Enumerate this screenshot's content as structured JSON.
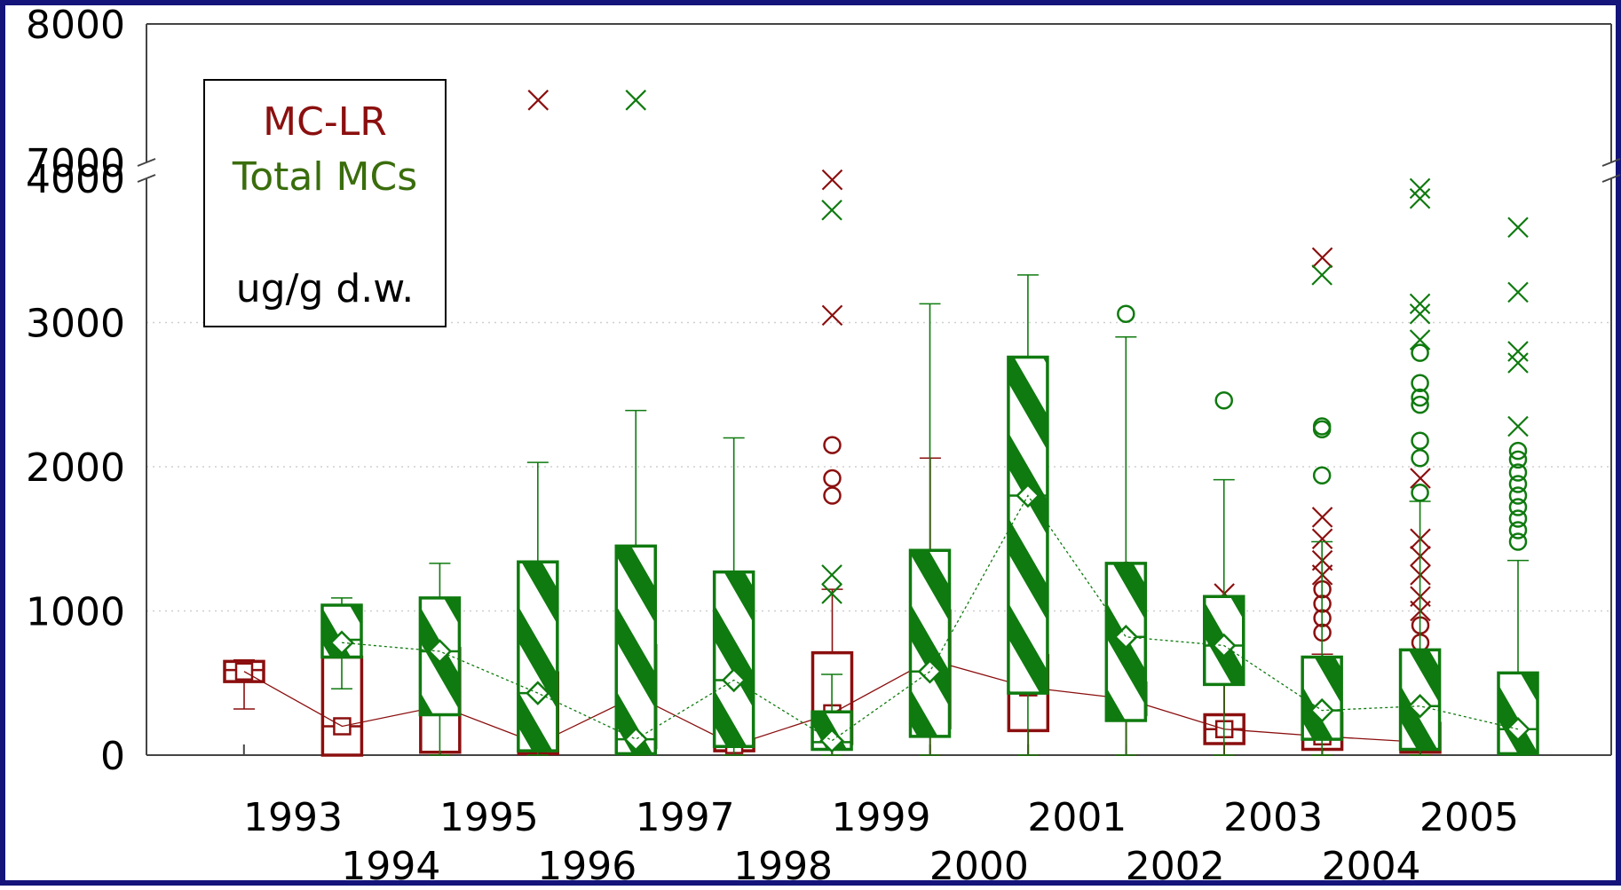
{
  "colors": {
    "frame": "#14147a",
    "mclr": "#8b0f0f",
    "total": "#0f7a0f",
    "grid": "#cfcfcf"
  },
  "legend": {
    "line1": "MC-LR",
    "line2": "Total MCs",
    "unit": "ug/g d.w."
  },
  "chart_data": {
    "type": "box",
    "x": [
      1993,
      1994,
      1995,
      1996,
      1997,
      1998,
      1999,
      2000,
      2001,
      2002,
      2003,
      2004,
      2005
    ],
    "xtick_labels": [
      "1993",
      "1994",
      "1995",
      "1996",
      "1997",
      "1998",
      "1999",
      "2000",
      "2001",
      "2002",
      "2003",
      "2004",
      "2005"
    ],
    "ytick_labels": [
      "0",
      "1000",
      "2000",
      "3000",
      "4000",
      "7000",
      "8000"
    ],
    "y_axis": {
      "lower_segment": [
        0,
        4000
      ],
      "upper_segment": [
        7000,
        8000
      ],
      "break": true
    },
    "grid": "horizontal dotted",
    "series": [
      {
        "name": "MC-LR",
        "color": "#8b0f0f",
        "boxes": [
          {
            "year": 1993,
            "whisker_low": 320,
            "q1": 510,
            "median": 590,
            "q3": 650,
            "whisker_high": 660,
            "mean": 580,
            "outliers_circle": [],
            "outliers_x": []
          },
          {
            "year": 1994,
            "whisker_low": 0,
            "q1": 0,
            "median": 200,
            "q3": 680,
            "whisker_high": 940,
            "mean": 200,
            "outliers_circle": [],
            "outliers_x": []
          },
          {
            "year": 1995,
            "whisker_low": 0,
            "q1": 20,
            "median": 330,
            "q3": 740,
            "whisker_high": 940,
            "mean": 340,
            "outliers_circle": [],
            "outliers_x": []
          },
          {
            "year": 1996,
            "whisker_low": 0,
            "q1": 10,
            "median": 80,
            "q3": 570,
            "whisker_high": 850,
            "mean": 80,
            "outliers_circle": [],
            "outliers_x": [
              7450
            ]
          },
          {
            "year": 1997,
            "whisker_low": 0,
            "q1": 50,
            "median": 400,
            "q3": 760,
            "whisker_high": 830,
            "mean": 410,
            "outliers_circle": [],
            "outliers_x": []
          },
          {
            "year": 1998,
            "whisker_low": 0,
            "q1": 30,
            "median": 60,
            "q3": 110,
            "whisker_high": 150,
            "mean": 70,
            "outliers_circle": [],
            "outliers_x": [
              380,
              480,
              750
            ]
          },
          {
            "year": 1999,
            "whisker_low": 0,
            "q1": 80,
            "median": 280,
            "q3": 710,
            "whisker_high": 1150,
            "mean": 290,
            "outliers_circle": [
              1800,
              1920,
              2150
            ],
            "outliers_x": [
              3050,
              3990
            ]
          },
          {
            "year": 2000,
            "whisker_low": 0,
            "q1": 190,
            "median": 650,
            "q3": 1000,
            "whisker_high": 2060,
            "mean": 660,
            "outliers_circle": [],
            "outliers_x": []
          },
          {
            "year": 2001,
            "whisker_low": 0,
            "q1": 170,
            "median": 460,
            "q3": 690,
            "whisker_high": 1150,
            "mean": 470,
            "outliers_circle": [],
            "outliers_x": []
          },
          {
            "year": 2002,
            "whisker_low": 0,
            "q1": 280,
            "median": 390,
            "q3": 500,
            "whisker_high": 800,
            "mean": 390,
            "outliers_circle": [
              1280
            ],
            "outliers_x": []
          },
          {
            "year": 2003,
            "whisker_low": 0,
            "q1": 80,
            "median": 180,
            "q3": 280,
            "whisker_high": 600,
            "mean": 180,
            "outliers_circle": [
              780
            ],
            "outliers_x": [
              1120
            ]
          },
          {
            "year": 2004,
            "whisker_low": 0,
            "q1": 40,
            "median": 130,
            "q3": 290,
            "whisker_high": 700,
            "mean": 130,
            "outliers_circle": [
              850,
              950,
              1050,
              1150
            ],
            "outliers_x": [
              1250,
              1350,
              1500,
              1650,
              3450
            ]
          },
          {
            "year": 2005,
            "whisker_low": 0,
            "q1": 20,
            "median": 90,
            "q3": 220,
            "whisker_high": 590,
            "mean": 90,
            "outliers_circle": [
              650,
              780,
              900
            ],
            "outliers_x": [
              1000,
              1100,
              1250,
              1380,
              1500,
              1920
            ]
          }
        ]
      },
      {
        "name": "Total MCs",
        "color": "#0f7a0f",
        "boxes": [
          {
            "year": 1993,
            "whisker_low": 460,
            "q1": 680,
            "median": 800,
            "q3": 1040,
            "whisker_high": 1090,
            "mean": 780,
            "outliers_circle": [],
            "outliers_x": []
          },
          {
            "year": 1994,
            "whisker_low": 0,
            "q1": 280,
            "median": 720,
            "q3": 1090,
            "whisker_high": 1330,
            "mean": 720,
            "outliers_circle": [],
            "outliers_x": []
          },
          {
            "year": 1995,
            "whisker_low": 0,
            "q1": 30,
            "median": 430,
            "q3": 1340,
            "whisker_high": 2030,
            "mean": 430,
            "outliers_circle": [],
            "outliers_x": []
          },
          {
            "year": 1996,
            "whisker_low": 0,
            "q1": 10,
            "median": 110,
            "q3": 1450,
            "whisker_high": 2390,
            "mean": 110,
            "outliers_circle": [],
            "outliers_x": [
              7450
            ]
          },
          {
            "year": 1997,
            "whisker_low": 0,
            "q1": 60,
            "median": 520,
            "q3": 1270,
            "whisker_high": 2200,
            "mean": 520,
            "outliers_circle": [],
            "outliers_x": []
          },
          {
            "year": 1998,
            "whisker_low": 0,
            "q1": 40,
            "median": 90,
            "q3": 300,
            "whisker_high": 560,
            "mean": 100,
            "outliers_circle": [],
            "outliers_x": [
              1120,
              1250,
              3780
            ]
          },
          {
            "year": 1999,
            "whisker_low": 0,
            "q1": 130,
            "median": 580,
            "q3": 1420,
            "whisker_high": 3130,
            "mean": 580,
            "outliers_circle": [],
            "outliers_x": []
          },
          {
            "year": 2000,
            "whisker_low": 0,
            "q1": 430,
            "median": 1800,
            "q3": 2760,
            "whisker_high": 3330,
            "mean": 1800,
            "outliers_circle": [],
            "outliers_x": []
          },
          {
            "year": 2001,
            "whisker_low": 0,
            "q1": 240,
            "median": 820,
            "q3": 1330,
            "whisker_high": 2900,
            "mean": 820,
            "outliers_circle": [
              3060
            ],
            "outliers_x": []
          },
          {
            "year": 2002,
            "whisker_low": 0,
            "q1": 490,
            "median": 760,
            "q3": 1100,
            "whisker_high": 1910,
            "mean": 760,
            "outliers_circle": [
              2460
            ],
            "outliers_x": []
          },
          {
            "year": 2003,
            "whisker_low": 0,
            "q1": 110,
            "median": 310,
            "q3": 680,
            "whisker_high": 1480,
            "mean": 310,
            "outliers_circle": [
              1940,
              2260,
              2280
            ],
            "outliers_x": [
              3330
            ]
          },
          {
            "year": 2004,
            "whisker_low": 0,
            "q1": 40,
            "median": 340,
            "q3": 730,
            "whisker_high": 1760,
            "mean": 340,
            "outliers_circle": [
              1820,
              2060,
              2180,
              2430,
              2480,
              2580,
              2790
            ],
            "outliers_x": [
              2880,
              3060,
              3130,
              3860,
              3930
            ]
          },
          {
            "year": 2005,
            "whisker_low": 0,
            "q1": 10,
            "median": 180,
            "q3": 570,
            "whisker_high": 1350,
            "mean": 180,
            "outliers_circle": [
              1480,
              1560,
              1640,
              1720,
              1800,
              1880,
              1960,
              2050,
              2110
            ],
            "outliers_x": [
              2280,
              2720,
              2800,
              3210,
              3660
            ]
          }
        ]
      }
    ]
  }
}
